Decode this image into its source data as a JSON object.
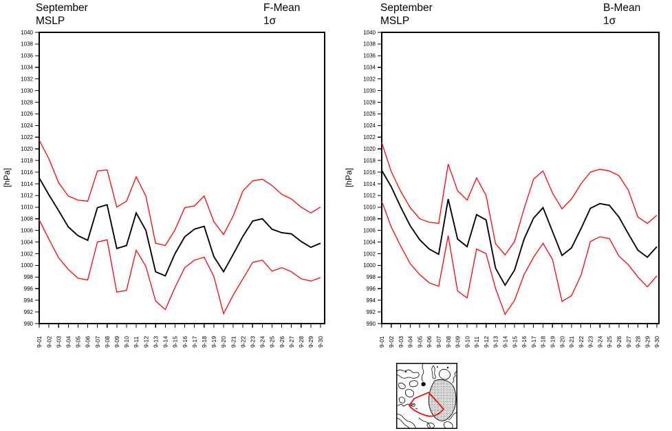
{
  "charts": [
    {
      "title_line1": "September",
      "title_line2": "MSLP",
      "stat_line1": "F-Mean",
      "stat_line2": "1σ",
      "ylabel": "[hPa]"
    },
    {
      "title_line1": "September",
      "title_line2": "MSLP",
      "stat_line1": "B-Mean",
      "stat_line2": "1σ",
      "ylabel": "[hPa]"
    }
  ],
  "chart_data": [
    {
      "type": "line",
      "title": "September MSLP",
      "subtitle": "F-Mean 1σ",
      "xlabel": "",
      "ylabel": "[hPa]",
      "ylim": [
        990,
        1040
      ],
      "ytick_step": 2,
      "grid": false,
      "legend_position": "none",
      "categories": [
        "9-01",
        "9-02",
        "9-03",
        "9-04",
        "9-05",
        "9-06",
        "9-07",
        "9-08",
        "9-09",
        "9-10",
        "9-11",
        "9-12",
        "9-13",
        "9-14",
        "9-15",
        "9-16",
        "9-17",
        "9-18",
        "9-19",
        "9-20",
        "9-21",
        "9-22",
        "9-23",
        "9-24",
        "9-25",
        "9-26",
        "9-27",
        "9-28",
        "9-29",
        "9-30"
      ],
      "series": [
        {
          "name": "mean",
          "color": "#000000",
          "stroke_width": 1.9,
          "values": [
            1015.0,
            1012.1,
            1009.4,
            1006.6,
            1005.1,
            1004.3,
            1009.9,
            1010.4,
            1002.9,
            1003.4,
            1009.0,
            1006.0,
            998.9,
            998.2,
            1002.0,
            1004.9,
            1006.2,
            1006.7,
            1001.5,
            998.9,
            1001.9,
            1005.0,
            1007.6,
            1008.0,
            1006.2,
            1005.6,
            1005.4,
            1004.1,
            1003.1,
            1003.8
          ]
        },
        {
          "name": "mean-plus-1sigma",
          "color": "#ff0000",
          "stroke_width": 1.3,
          "values": [
            1021.5,
            1018.3,
            1014.2,
            1011.9,
            1011.2,
            1011.0,
            1016.2,
            1016.4,
            1010.0,
            1011.0,
            1015.2,
            1011.9,
            1003.8,
            1003.4,
            1006.1,
            1009.9,
            1010.2,
            1011.9,
            1007.5,
            1005.3,
            1008.5,
            1012.8,
            1014.5,
            1014.8,
            1013.7,
            1012.2,
            1011.4,
            1010.0,
            1009.0,
            1010.0
          ]
        },
        {
          "name": "mean-minus-1sigma",
          "color": "#ff0000",
          "stroke_width": 1.3,
          "values": [
            1007.8,
            1004.5,
            1001.3,
            999.3,
            997.8,
            997.5,
            1004.0,
            1004.4,
            995.4,
            995.7,
            1002.6,
            999.8,
            993.9,
            992.4,
            996.2,
            999.6,
            1000.9,
            1001.4,
            998.1,
            991.7,
            994.9,
            997.7,
            1000.5,
            1000.9,
            999.0,
            999.6,
            998.9,
            997.7,
            997.3,
            997.9
          ]
        }
      ]
    },
    {
      "type": "line",
      "title": "September MSLP",
      "subtitle": "B-Mean 1σ",
      "xlabel": "",
      "ylabel": "[hPa]",
      "ylim": [
        990,
        1040
      ],
      "ytick_step": 2,
      "grid": false,
      "legend_position": "none",
      "categories": [
        "9-01",
        "9-02",
        "9-03",
        "9-04",
        "9-05",
        "9-06",
        "9-07",
        "9-08",
        "9-09",
        "9-10",
        "9-11",
        "9-12",
        "9-13",
        "9-14",
        "9-15",
        "9-16",
        "9-17",
        "9-18",
        "9-19",
        "9-20",
        "9-21",
        "9-22",
        "9-23",
        "9-24",
        "9-25",
        "9-26",
        "9-27",
        "9-28",
        "9-29",
        "9-30"
      ],
      "series": [
        {
          "name": "mean",
          "color": "#000000",
          "stroke_width": 1.9,
          "values": [
            1016.3,
            1013.5,
            1010.0,
            1006.8,
            1004.4,
            1002.8,
            1001.9,
            1011.4,
            1004.5,
            1003.2,
            1008.7,
            1007.8,
            999.5,
            996.6,
            999.2,
            1004.5,
            1008.1,
            1009.9,
            1005.8,
            1001.7,
            1003.0,
            1006.3,
            1009.8,
            1010.6,
            1010.3,
            1008.3,
            1005.4,
            1002.6,
            1001.4,
            1003.2
          ]
        },
        {
          "name": "mean-plus-1sigma",
          "color": "#ff0000",
          "stroke_width": 1.3,
          "values": [
            1021.1,
            1016.1,
            1012.7,
            1009.9,
            1008.0,
            1007.4,
            1007.2,
            1017.4,
            1012.8,
            1011.2,
            1015.0,
            1012.0,
            1003.7,
            1001.8,
            1004.1,
            1009.7,
            1014.8,
            1016.2,
            1012.4,
            1009.7,
            1011.4,
            1014.0,
            1016.0,
            1016.5,
            1016.2,
            1015.4,
            1012.9,
            1008.3,
            1007.2,
            1008.6
          ]
        },
        {
          "name": "mean-minus-1sigma",
          "color": "#ff0000",
          "stroke_width": 1.3,
          "values": [
            1011.0,
            1006.6,
            1003.3,
            1000.3,
            998.4,
            997.0,
            996.4,
            1005.1,
            995.6,
            994.4,
            1002.8,
            1002.0,
            996.0,
            991.6,
            994.0,
            998.4,
            1001.4,
            1003.8,
            1001.0,
            993.8,
            994.8,
            998.3,
            1004.1,
            1004.9,
            1004.6,
            1001.6,
            1000.1,
            998.0,
            996.3,
            998.2
          ]
        }
      ]
    }
  ],
  "map_inset": {
    "border_color": "#000000",
    "coast_color": "#000000",
    "region_color": "#ff0000"
  }
}
